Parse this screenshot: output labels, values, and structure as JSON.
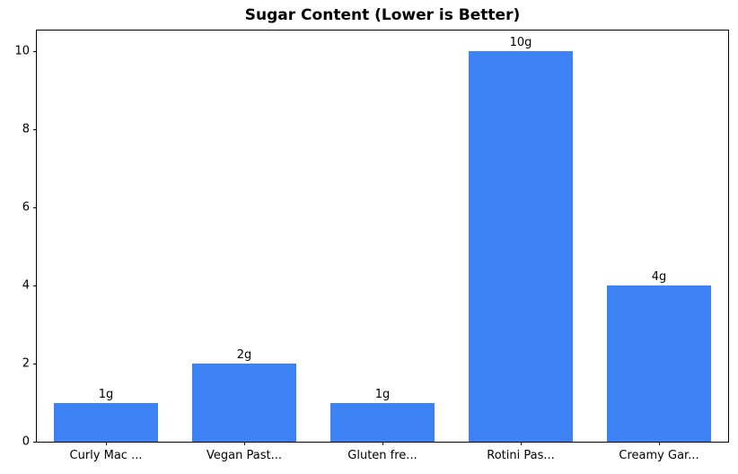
{
  "chart_data": {
    "type": "bar",
    "title": "Sugar Content (Lower is Better)",
    "categories": [
      "Curly Mac ...",
      "Vegan Past...",
      "Gluten fre...",
      "Rotini Pas...",
      "Creamy Gar..."
    ],
    "values": [
      1,
      2,
      1,
      10,
      4
    ],
    "bar_labels": [
      "1g",
      "2g",
      "1g",
      "10g",
      "4g"
    ],
    "xlabel": "",
    "ylabel": "",
    "yticks": [
      0,
      2,
      4,
      6,
      8,
      10
    ],
    "ylim": [
      0,
      10.53
    ],
    "grid": false,
    "legend": "none",
    "bar_color": "#3d82f4",
    "axis_color": "#000000",
    "text_color": "#000000",
    "background_color": "#ffffff"
  }
}
